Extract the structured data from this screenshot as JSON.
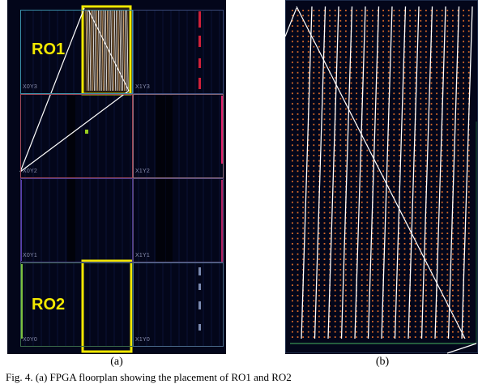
{
  "panel_a": {
    "regions": [
      "X0Y3",
      "X1Y3",
      "X0Y2",
      "X1Y2",
      "X0Y1",
      "X1Y1",
      "X0Y0",
      "X1Y0"
    ],
    "ro_labels": [
      "RO1",
      "RO2"
    ],
    "highlight_color": "#f2e800",
    "route_color": "#ffffff",
    "marker_color": "#e0206a"
  },
  "panel_b": {
    "logic_dot_color": "#d86a2a",
    "route_color": "#ffffff",
    "border_color": "#2f7a4a"
  },
  "captions": {
    "a": "(a)",
    "b": "(b)",
    "figure": "Fig. 4. (a) FPGA floorplan showing the placement of RO1 and RO2"
  }
}
